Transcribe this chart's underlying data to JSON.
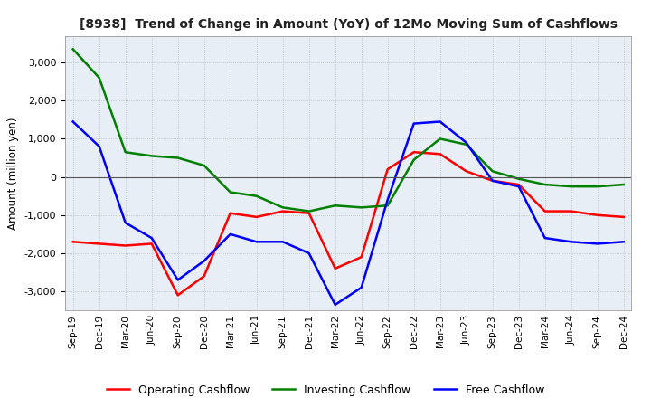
{
  "title": "[8938]  Trend of Change in Amount (YoY) of 12Mo Moving Sum of Cashflows",
  "ylabel": "Amount (million yen)",
  "ylim": [
    -3500,
    3700
  ],
  "yticks": [
    -3000,
    -2000,
    -1000,
    0,
    1000,
    2000,
    3000
  ],
  "x_labels": [
    "Sep-19",
    "Dec-19",
    "Mar-20",
    "Jun-20",
    "Sep-20",
    "Dec-20",
    "Mar-21",
    "Jun-21",
    "Sep-21",
    "Dec-21",
    "Mar-22",
    "Jun-22",
    "Sep-22",
    "Dec-22",
    "Mar-23",
    "Jun-23",
    "Sep-23",
    "Dec-23",
    "Mar-24",
    "Jun-24",
    "Sep-24",
    "Dec-24"
  ],
  "operating": [
    -1700,
    -1750,
    -1800,
    -1750,
    -3100,
    -2600,
    -950,
    -1050,
    -900,
    -950,
    -2400,
    -2100,
    200,
    650,
    600,
    150,
    -100,
    -200,
    -900,
    -900,
    -1000,
    -1050
  ],
  "investing": [
    3350,
    2600,
    650,
    550,
    500,
    300,
    -400,
    -500,
    -800,
    -900,
    -750,
    -800,
    -750,
    450,
    1000,
    850,
    150,
    -50,
    -200,
    -250,
    -250,
    -200
  ],
  "free": [
    1450,
    800,
    -1200,
    -1600,
    -2700,
    -2200,
    -1500,
    -1700,
    -1700,
    -2000,
    -3350,
    -2900,
    -600,
    1400,
    1450,
    900,
    -100,
    -250,
    -1600,
    -1700,
    -1750,
    -1700
  ],
  "operating_color": "#ff0000",
  "investing_color": "#008000",
  "free_color": "#0000ff",
  "legend_labels": [
    "Operating Cashflow",
    "Investing Cashflow",
    "Free Cashflow"
  ],
  "background_color": "#ffffff",
  "plot_bg_color": "#e8eef5",
  "grid_color": "#aaaaaa"
}
